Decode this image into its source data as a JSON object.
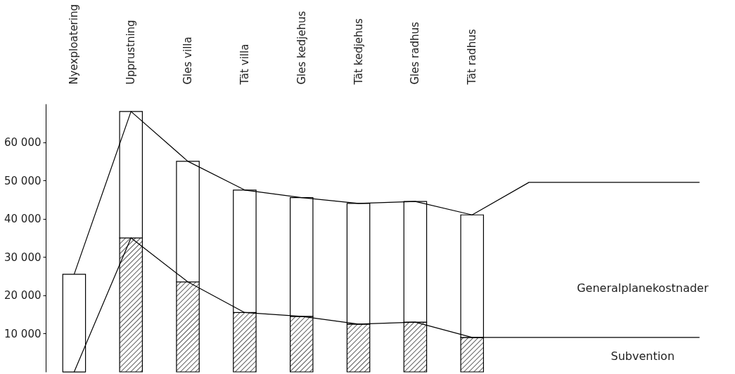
{
  "chart_data": {
    "type": "bar",
    "stacked": true,
    "categories": [
      "Nyexploatering",
      "Upprustning",
      "Gles villa",
      "Tät villa",
      "Gles kedjehus",
      "Tät kedjehus",
      "Gles radhus",
      "Tät radhus",
      null,
      null,
      null,
      null
    ],
    "series": [
      {
        "name": "Subvention",
        "color": "#000000",
        "values": [
          0,
          35000,
          23500,
          15500,
          14500,
          12500,
          13000,
          9000,
          null,
          null,
          null,
          null
        ]
      },
      {
        "name": "Generalplanekostnader",
        "color": "#ffffff",
        "values": [
          25500,
          33000,
          31500,
          32000,
          31000,
          31500,
          31500,
          32000,
          null,
          null,
          null,
          null
        ]
      },
      {
        "type": "line",
        "color": "#000000",
        "values": [
          25500,
          68000,
          55000,
          47500,
          45500,
          44000,
          44500,
          41000,
          49500,
          49500,
          49500,
          49500
        ]
      },
      {
        "type": "line",
        "color": "#000000",
        "values": [
          0,
          35000,
          23500,
          15500,
          14500,
          12500,
          13000,
          9000,
          9000,
          9000,
          9000,
          9000
        ]
      }
    ],
    "ylim": [
      0,
      70000
    ],
    "yticks": [
      {
        "value": 10000,
        "label": "10 000"
      },
      {
        "value": 20000,
        "label": "20 000"
      },
      {
        "value": 30000,
        "label": "30 000"
      },
      {
        "value": 40000,
        "label": "40 000"
      },
      {
        "value": 50000,
        "label": "50 000"
      },
      {
        "value": 60000,
        "label": "60 000"
      }
    ]
  }
}
